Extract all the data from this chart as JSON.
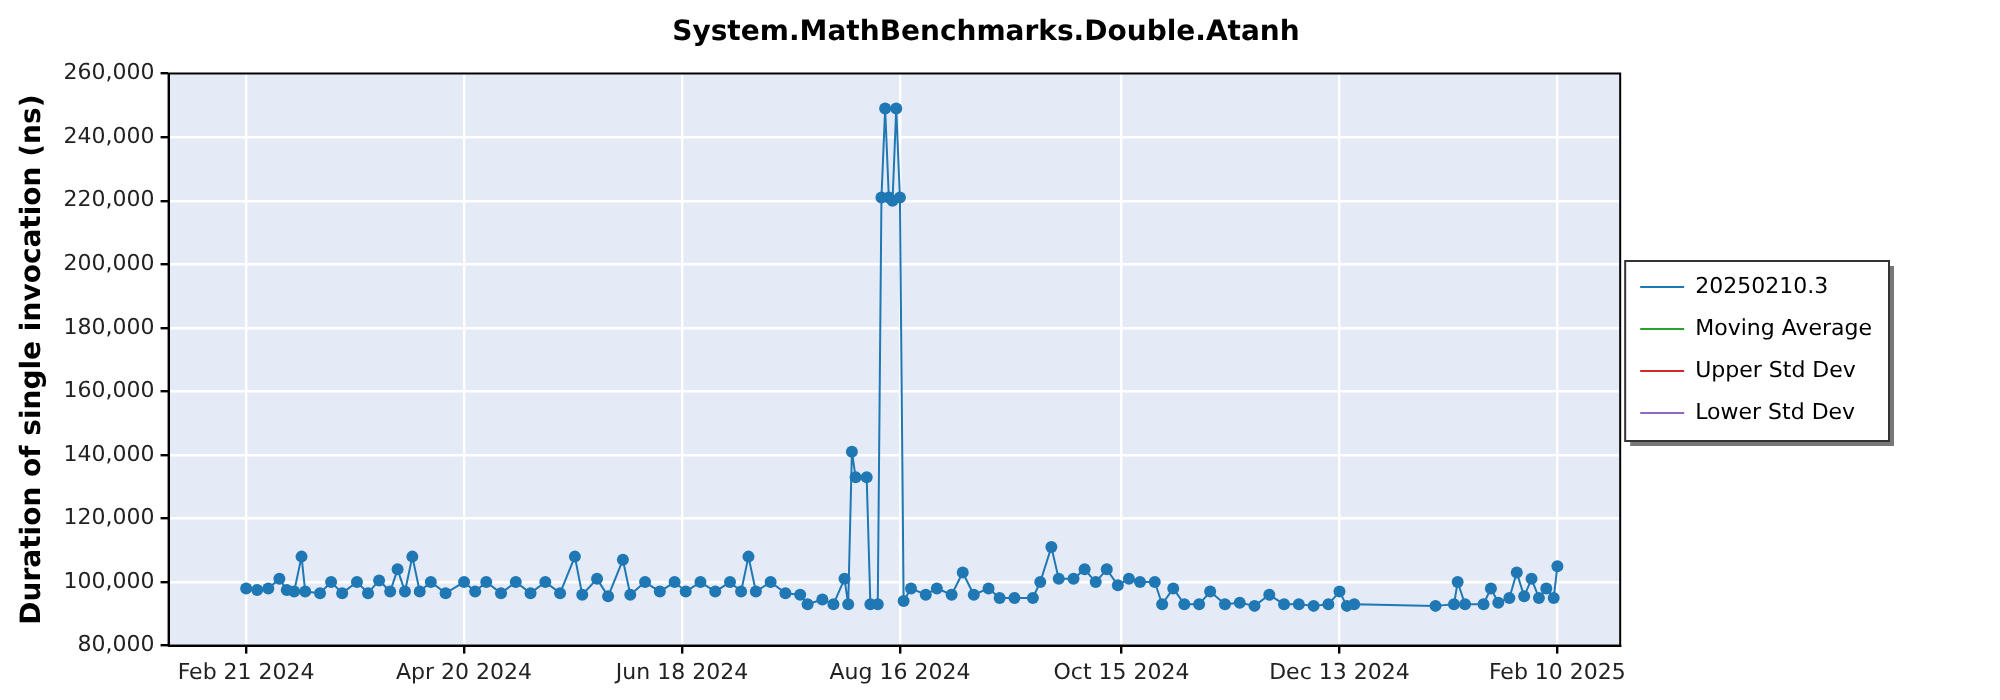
{
  "chart_data": {
    "type": "line",
    "title": "System.MathBenchmarks.Double.Atanh",
    "ylabel": "Duration of single invocation (ns)",
    "x": [
      "2024-02-21",
      "2024-02-24",
      "2024-02-27",
      "2024-03-01",
      "2024-03-03",
      "2024-03-05",
      "2024-03-07",
      "2024-03-08",
      "2024-03-12",
      "2024-03-15",
      "2024-03-18",
      "2024-03-22",
      "2024-03-25",
      "2024-03-28",
      "2024-03-31",
      "2024-04-02",
      "2024-04-04",
      "2024-04-06",
      "2024-04-08",
      "2024-04-11",
      "2024-04-15",
      "2024-04-20",
      "2024-04-23",
      "2024-04-26",
      "2024-04-30",
      "2024-05-04",
      "2024-05-08",
      "2024-05-12",
      "2024-05-16",
      "2024-05-20",
      "2024-05-22",
      "2024-05-26",
      "2024-05-29",
      "2024-06-02",
      "2024-06-04",
      "2024-06-08",
      "2024-06-12",
      "2024-06-16",
      "2024-06-19",
      "2024-06-23",
      "2024-06-27",
      "2024-07-01",
      "2024-07-04",
      "2024-07-06",
      "2024-07-08",
      "2024-07-12",
      "2024-07-16",
      "2024-07-20",
      "2024-07-22",
      "2024-07-26",
      "2024-07-29",
      "2024-08-01",
      "2024-08-02",
      "2024-08-03",
      "2024-08-04",
      "2024-08-07",
      "2024-08-08",
      "2024-08-10",
      "2024-08-11",
      "2024-08-12",
      "2024-08-13",
      "2024-08-14",
      "2024-08-15",
      "2024-08-16",
      "2024-08-17",
      "2024-08-19",
      "2024-08-23",
      "2024-08-26",
      "2024-08-30",
      "2024-09-02",
      "2024-09-05",
      "2024-09-09",
      "2024-09-12",
      "2024-09-16",
      "2024-09-21",
      "2024-09-23",
      "2024-09-26",
      "2024-09-28",
      "2024-10-02",
      "2024-10-05",
      "2024-10-08",
      "2024-10-11",
      "2024-10-14",
      "2024-10-17",
      "2024-10-20",
      "2024-10-24",
      "2024-10-26",
      "2024-10-29",
      "2024-11-01",
      "2024-11-05",
      "2024-11-08",
      "2024-11-12",
      "2024-11-16",
      "2024-11-20",
      "2024-11-24",
      "2024-11-28",
      "2024-12-02",
      "2024-12-06",
      "2024-12-10",
      "2024-12-13",
      "2024-12-15",
      "2024-12-17",
      "2025-01-08",
      "2025-01-13",
      "2025-01-14",
      "2025-01-16",
      "2025-01-21",
      "2025-01-23",
      "2025-01-25",
      "2025-01-28",
      "2025-01-30",
      "2025-02-01",
      "2025-02-03",
      "2025-02-05",
      "2025-02-07",
      "2025-02-09",
      "2025-02-10"
    ],
    "series": [
      {
        "name": "20250210.3",
        "color": "#1f77b4",
        "values": [
          98000,
          97500,
          98000,
          101000,
          97500,
          97000,
          108000,
          97000,
          96500,
          100000,
          96500,
          100000,
          96500,
          100500,
          97000,
          104000,
          97000,
          108000,
          97000,
          100000,
          96500,
          100000,
          97000,
          100000,
          96500,
          100000,
          96500,
          100000,
          96500,
          108000,
          96000,
          101000,
          95500,
          107000,
          96000,
          100000,
          97000,
          100000,
          97000,
          100000,
          97000,
          100000,
          97000,
          108000,
          97000,
          100000,
          96500,
          96000,
          93000,
          94500,
          93000,
          101000,
          93000,
          141000,
          133000,
          133000,
          93000,
          93000,
          221000,
          249000,
          221000,
          220000,
          249000,
          221000,
          94000,
          98000,
          96000,
          98000,
          96000,
          103000,
          96000,
          98000,
          95000,
          95000,
          95000,
          100000,
          111000,
          101000,
          101000,
          104000,
          100000,
          104000,
          99000,
          101000,
          100000,
          100000,
          93000,
          98000,
          93000,
          93000,
          97000,
          93000,
          93500,
          92500,
          96000,
          93000,
          93000,
          92500,
          93000,
          97000,
          92500,
          93000,
          92500,
          93000,
          100000,
          93000,
          93000,
          98000,
          93500,
          95000,
          103000,
          95500,
          101000,
          95000,
          98000,
          95000,
          105000
        ]
      },
      {
        "name": "Moving Average",
        "color": "#2ca02c",
        "values": [
          null,
          null,
          null,
          null,
          null,
          null,
          null,
          null,
          null,
          null,
          null,
          null,
          null,
          null,
          null,
          null,
          null,
          null,
          null,
          null,
          null,
          null,
          null,
          null,
          null,
          null,
          null,
          null,
          null,
          null,
          null,
          null,
          null,
          null,
          null,
          null,
          null,
          null,
          null,
          null,
          null,
          null,
          null,
          null,
          null,
          null,
          null,
          null,
          null,
          null,
          null,
          null,
          null,
          null,
          null,
          null,
          null,
          null,
          null,
          null,
          null,
          null,
          null,
          null,
          null,
          null,
          null,
          null,
          null,
          null,
          null,
          null,
          null,
          null,
          null,
          null,
          null,
          null,
          null,
          null,
          null,
          null,
          null,
          null,
          null,
          null,
          null,
          null,
          null,
          null,
          null,
          null,
          null,
          null,
          null,
          null,
          null,
          null,
          null,
          null,
          null,
          null,
          null,
          null,
          null,
          null,
          null,
          null,
          null,
          null,
          null,
          null,
          null,
          null,
          null,
          null,
          null
        ]
      },
      {
        "name": "Upper Std Dev",
        "color": "#d62728",
        "values": [
          null,
          null,
          null,
          null,
          null,
          null,
          null,
          null,
          null,
          null,
          null,
          null,
          null,
          null,
          null,
          null,
          null,
          null,
          null,
          null,
          null,
          null,
          null,
          null,
          null,
          null,
          null,
          null,
          null,
          null,
          null,
          null,
          null,
          null,
          null,
          null,
          null,
          null,
          null,
          null,
          null,
          null,
          null,
          null,
          null,
          null,
          null,
          null,
          null,
          null,
          null,
          null,
          null,
          null,
          null,
          null,
          null,
          null,
          null,
          null,
          null,
          null,
          null,
          null,
          null,
          null,
          null,
          null,
          null,
          null,
          null,
          null,
          null,
          null,
          null,
          null,
          null,
          null,
          null,
          null,
          null,
          null,
          null,
          null,
          null,
          null,
          null,
          null,
          null,
          null,
          null,
          null,
          null,
          null,
          null,
          null,
          null,
          null,
          null,
          null,
          null,
          null,
          null,
          null,
          null,
          null,
          null,
          null,
          null,
          null,
          null,
          null,
          null,
          null,
          null,
          null,
          null
        ]
      },
      {
        "name": "Lower Std Dev",
        "color": "#9467bd",
        "values": [
          null,
          null,
          null,
          null,
          null,
          null,
          null,
          null,
          null,
          null,
          null,
          null,
          null,
          null,
          null,
          null,
          null,
          null,
          null,
          null,
          null,
          null,
          null,
          null,
          null,
          null,
          null,
          null,
          null,
          null,
          null,
          null,
          null,
          null,
          null,
          null,
          null,
          null,
          null,
          null,
          null,
          null,
          null,
          null,
          null,
          null,
          null,
          null,
          null,
          null,
          null,
          null,
          null,
          null,
          null,
          null,
          null,
          null,
          null,
          null,
          null,
          null,
          null,
          null,
          null,
          null,
          null,
          null,
          null,
          null,
          null,
          null,
          null,
          null,
          null,
          null,
          null,
          null,
          null,
          null,
          null,
          null,
          null,
          null,
          null,
          null,
          null,
          null,
          null,
          null,
          null,
          null,
          null,
          null,
          null,
          null,
          null,
          null,
          null,
          null,
          null,
          null,
          null,
          null,
          null,
          null,
          null,
          null,
          null,
          null,
          null,
          null,
          null,
          null,
          null,
          null,
          null
        ]
      }
    ],
    "xlim": [
      "2024-01-31",
      "2025-02-27"
    ],
    "xticks": [
      {
        "value": "2024-02-21",
        "label": "Feb 21 2024"
      },
      {
        "value": "2024-04-20",
        "label": "Apr 20 2024"
      },
      {
        "value": "2024-06-18",
        "label": "Jun 18 2024"
      },
      {
        "value": "2024-08-16",
        "label": "Aug 16 2024"
      },
      {
        "value": "2024-10-15",
        "label": "Oct 15 2024"
      },
      {
        "value": "2024-12-13",
        "label": "Dec 13 2024"
      },
      {
        "value": "2025-02-10",
        "label": "Feb 10 2025"
      }
    ],
    "ylim": [
      80000,
      260000
    ],
    "yticks": [
      {
        "value": 80000,
        "label": "80,000"
      },
      {
        "value": 100000,
        "label": "100,000"
      },
      {
        "value": 120000,
        "label": "120,000"
      },
      {
        "value": 140000,
        "label": "140,000"
      },
      {
        "value": 160000,
        "label": "160,000"
      },
      {
        "value": 180000,
        "label": "180,000"
      },
      {
        "value": 200000,
        "label": "200,000"
      },
      {
        "value": 220000,
        "label": "220,000"
      },
      {
        "value": 240000,
        "label": "240,000"
      },
      {
        "value": 260000,
        "label": "260,000"
      }
    ],
    "grid": true,
    "legend": "right",
    "marker": "circle",
    "line_style": "solid"
  }
}
